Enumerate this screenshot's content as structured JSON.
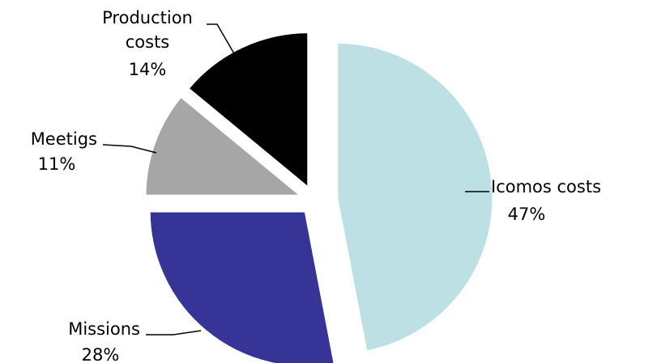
{
  "chart_data": {
    "type": "pie",
    "title": "",
    "start_angle_deg": 0,
    "direction": "clockwise",
    "slices": [
      {
        "label_lines": [
          "Icomos costs"
        ],
        "percent_label": "47%",
        "value": 47,
        "color": "#BCE0E3",
        "exploded": false
      },
      {
        "label_lines": [
          "Missions"
        ],
        "percent_label": "28%",
        "value": 28,
        "color": "#373497",
        "exploded": true
      },
      {
        "label_lines": [
          "Meetigs"
        ],
        "percent_label": "11%",
        "value": 11,
        "color": "#A6A6A6",
        "exploded": true
      },
      {
        "label_lines": [
          "Production",
          "costs"
        ],
        "percent_label": "14%",
        "value": 14,
        "color": "#000000",
        "exploded": true
      }
    ],
    "legend": "none"
  }
}
